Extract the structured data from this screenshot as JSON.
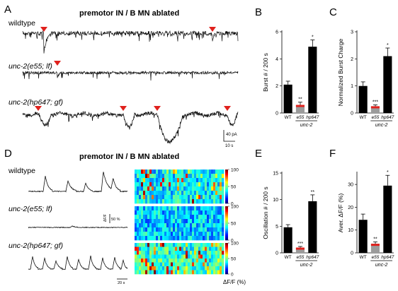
{
  "panels": {
    "A": "A",
    "B": "B",
    "C": "C",
    "D": "D",
    "E": "E",
    "F": "F"
  },
  "traces": {
    "A_title": "premotor IN / B MN ablated",
    "A_rows": [
      "wildtype",
      "unc-2(e55; lf)",
      "unc-2(hp647; gf)"
    ],
    "A_scale_y": "40 pA",
    "A_scale_x": "10 s",
    "D_title": "premotor IN / B MN ablated",
    "D_rows": [
      "wildtype",
      "unc-2(e55; lf)",
      "unc-2(hp647; gf)"
    ],
    "D_scale_y1": "ΔF/F",
    "D_scale_y2": "50 %",
    "D_scale_x": "20 s",
    "heatmap_xlabel": "ΔF/F (%)",
    "heatmap_ticks": [
      "100",
      "50",
      "0"
    ]
  },
  "group_label": "unc-2",
  "colors": {
    "accent_red": "#e0211d",
    "bar": "#000000",
    "bar_e55": "#9b9b9b"
  },
  "chart_data": [
    {
      "panel": "B",
      "type": "bar",
      "categories": [
        "WT",
        "e55",
        "hp647"
      ],
      "values": [
        2.1,
        0.6,
        4.9
      ],
      "errors": [
        0.25,
        0.2,
        0.5
      ],
      "significance": [
        "",
        "**",
        "*"
      ],
      "ylabel": "Burst # / 200 s",
      "ylim": [
        0,
        6
      ],
      "yticks": [
        0,
        2,
        4,
        6
      ]
    },
    {
      "panel": "C",
      "type": "bar",
      "categories": [
        "WT",
        "e55",
        "hp647"
      ],
      "values": [
        1.0,
        0.25,
        2.1
      ],
      "errors": [
        0.15,
        0.05,
        0.3
      ],
      "significance": [
        "",
        "***",
        "*"
      ],
      "ylabel": "Normalized Burst Charge",
      "ylim": [
        0,
        3
      ],
      "yticks": [
        0,
        1,
        2,
        3
      ]
    },
    {
      "panel": "E",
      "type": "bar",
      "categories": [
        "WT",
        "e55",
        "hp647"
      ],
      "values": [
        4.8,
        1.0,
        9.7
      ],
      "errors": [
        0.5,
        0.2,
        1.2
      ],
      "significance": [
        "",
        "***",
        "**"
      ],
      "ylabel": "Oscillation # / 200 s",
      "ylim": [
        0,
        15
      ],
      "yticks": [
        0,
        5,
        10,
        15
      ]
    },
    {
      "panel": "F",
      "type": "bar",
      "categories": [
        "WT",
        "e55",
        "hp647"
      ],
      "values": [
        14.5,
        4.0,
        29.5
      ],
      "errors": [
        2.5,
        0.8,
        4.5
      ],
      "significance": [
        "",
        "**",
        "*"
      ],
      "ylabel": "Aver. ΔF/F (%)",
      "ylim": [
        0,
        35
      ],
      "yticks": [
        0,
        10,
        20,
        30
      ]
    }
  ]
}
